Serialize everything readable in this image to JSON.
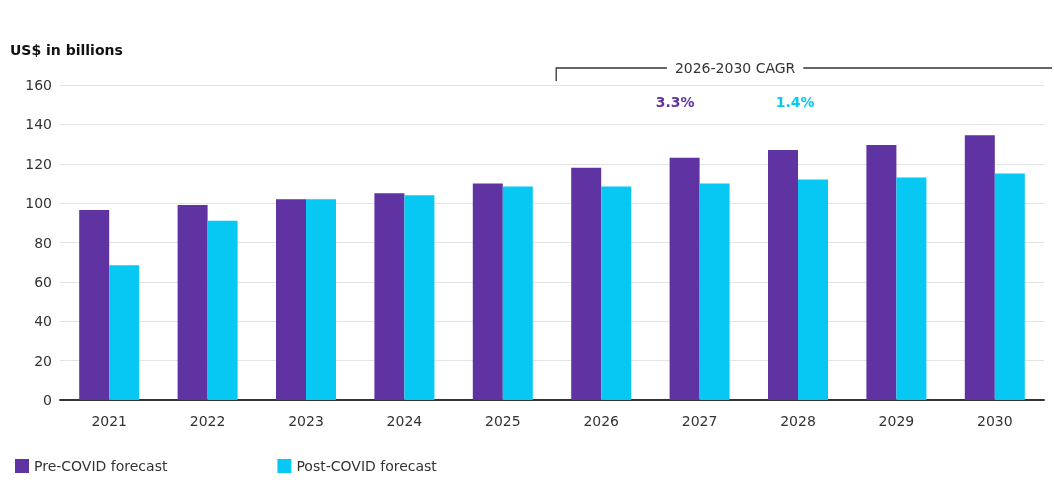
{
  "chart_data": {
    "type": "bar",
    "ylabel": "US$ in billions",
    "categories": [
      "2021",
      "2022",
      "2023",
      "2024",
      "2025",
      "2026",
      "2027",
      "2028",
      "2029",
      "2030"
    ],
    "series": [
      {
        "name": "Pre-COVID forecast",
        "color": "#5f33a1",
        "values": [
          96.5,
          99,
          102,
          105,
          110,
          118,
          123,
          127,
          129.5,
          134.5
        ]
      },
      {
        "name": "Post-COVID forecast",
        "color": "#06c8f2",
        "values": [
          68.5,
          91,
          102,
          104,
          108.5,
          108.5,
          110,
          112,
          113,
          115
        ]
      }
    ],
    "ylim": [
      0,
      160
    ],
    "yticks": [
      0,
      20,
      40,
      60,
      80,
      100,
      120,
      140,
      160
    ],
    "grid": "y",
    "legend": "bottom left",
    "annotations": [
      "2026-2030 CAGR",
      "3.3%",
      "1.4%"
    ]
  }
}
